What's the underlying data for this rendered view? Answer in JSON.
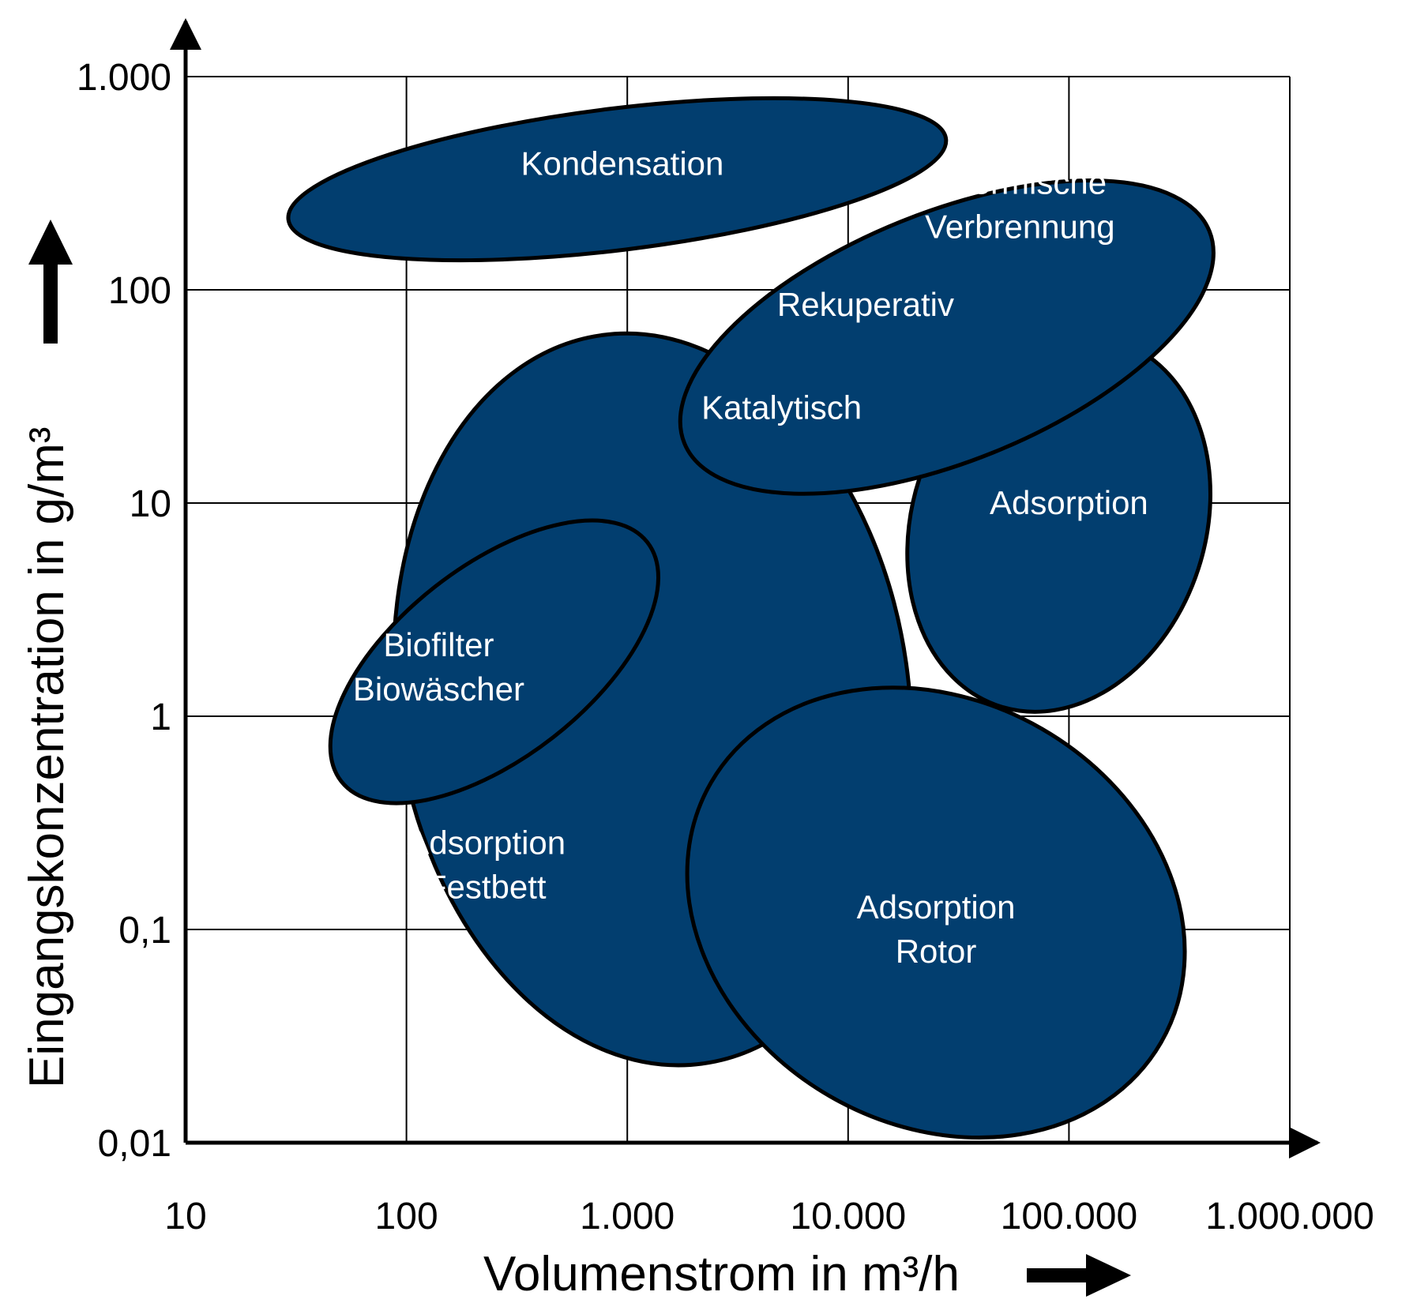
{
  "chart_data": {
    "type": "region-map",
    "x_scale": "log",
    "y_scale": "log",
    "xlim": [
      10,
      1000000
    ],
    "ylim": [
      0.01,
      1000
    ],
    "grid": true,
    "xlabel": "Volumenstrom in m³/h",
    "ylabel": "Eingangskonzentration in g/m³",
    "x_ticks": [
      {
        "value": 10,
        "label": "10"
      },
      {
        "value": 100,
        "label": "100"
      },
      {
        "value": 1000,
        "label": "1.000"
      },
      {
        "value": 10000,
        "label": "10.000"
      },
      {
        "value": 100000,
        "label": "100.000"
      },
      {
        "value": 1000000,
        "label": "1.000.000"
      }
    ],
    "y_ticks": [
      {
        "value": 0.01,
        "label": "0,01"
      },
      {
        "value": 0.1,
        "label": "0,1"
      },
      {
        "value": 1,
        "label": "1"
      },
      {
        "value": 10,
        "label": "10"
      },
      {
        "value": 100,
        "label": "100"
      },
      {
        "value": 1000,
        "label": "1.000"
      }
    ],
    "fill_color": "#023e6f",
    "stroke_color": "#000000",
    "regions": [
      {
        "name": "Adsorption Festbett",
        "lines": [
          "Adsorption",
          "Festbett"
        ],
        "x_center": 1300,
        "y_center": 1.2,
        "x_range": [
          40,
          20000
        ],
        "y_range": [
          0.015,
          70
        ],
        "label_x": 230,
        "label_y": 0.2
      },
      {
        "name": "Adsorption",
        "lines": [
          "Adsorption"
        ],
        "x_center": 90000,
        "y_center": 8,
        "x_range": [
          20000,
          500000
        ],
        "y_range": [
          0.6,
          60
        ],
        "label_x": 100000,
        "label_y": 10
      },
      {
        "name": "Kondensation",
        "lines": [
          "Kondensation"
        ],
        "x_center": 900,
        "y_center": 330,
        "x_range": [
          30,
          30000
        ],
        "y_range": [
          170,
          850
        ],
        "label_x": 950,
        "label_y": 390
      },
      {
        "name": "Thermische Verbrennung",
        "lines": [
          "Thermische",
          "Verbrennung"
        ],
        "x_center": 28000,
        "y_center": 60,
        "x_range": [
          1000,
          500000
        ],
        "y_range": [
          12,
          500
        ],
        "label_x": 60000,
        "label_y": 250
      },
      {
        "name": "Biofilter Biowäscher",
        "lines": [
          "Biofilter",
          "Biowäscher"
        ],
        "x_center": 250,
        "y_center": 1.8,
        "x_range": [
          20,
          1800
        ],
        "y_range": [
          0.35,
          15
        ],
        "label_x": 140,
        "label_y": 1.7
      },
      {
        "name": "Adsorption Rotor",
        "lines": [
          "Adsorption",
          "Rotor"
        ],
        "x_center": 25000,
        "y_center": 0.12,
        "x_range": [
          1000,
          300000
        ],
        "y_range": [
          0.015,
          4
        ],
        "label_x": 25000,
        "label_y": 0.1
      }
    ],
    "annotations": [
      {
        "text": "Rekuperativ",
        "x": 12000,
        "y": 85
      },
      {
        "text": "Katalytisch",
        "x": 5000,
        "y": 28
      }
    ]
  }
}
